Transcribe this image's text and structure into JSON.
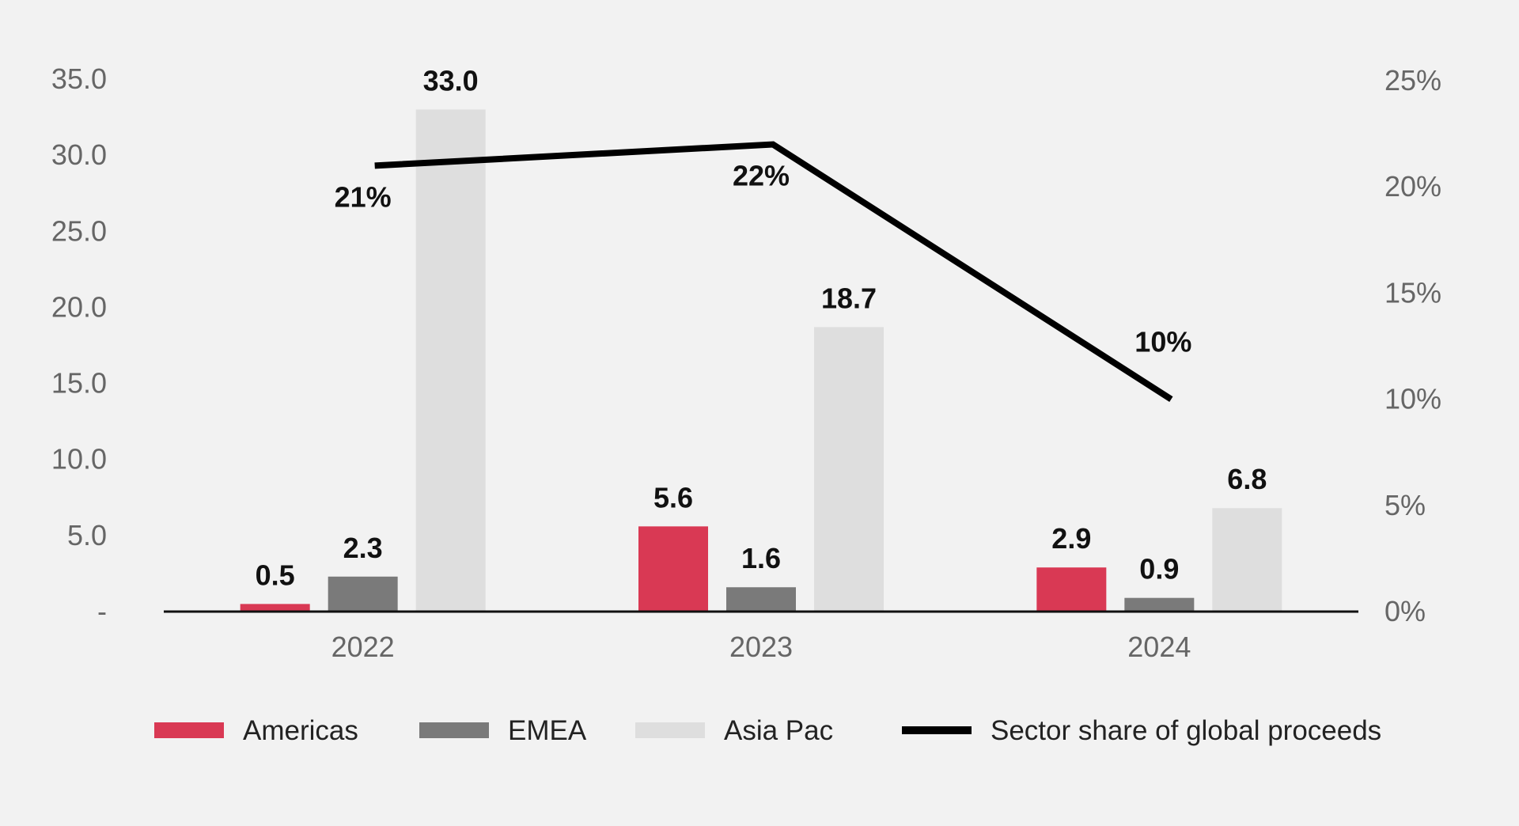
{
  "chart_data": {
    "type": "bar",
    "categories": [
      "2022",
      "2023",
      "2024"
    ],
    "series": [
      {
        "name": "Americas",
        "values": [
          0.5,
          5.6,
          2.9
        ],
        "labels": [
          "0.5",
          "5.6",
          "2.9"
        ],
        "color": "#d93954"
      },
      {
        "name": "EMEA",
        "values": [
          2.3,
          1.6,
          0.9
        ],
        "labels": [
          "2.3",
          "1.6",
          "0.9"
        ],
        "color": "#7a7a7a"
      },
      {
        "name": "Asia Pac",
        "values": [
          33.0,
          18.7,
          6.8
        ],
        "labels": [
          "33.0",
          "18.7",
          "6.8"
        ],
        "color": "#dedede"
      }
    ],
    "line_series": {
      "name": "Sector share of global proceeds",
      "values": [
        0.21,
        0.22,
        0.1
      ],
      "labels": [
        "21%",
        "22%",
        "10%"
      ],
      "color": "#000000",
      "axis": "right"
    },
    "y_left": {
      "ylim": [
        0,
        35
      ],
      "ticks": [
        0,
        5,
        10,
        15,
        20,
        25,
        30,
        35
      ],
      "tick_labels": [
        "-",
        "5.0",
        "10.0",
        "15.0",
        "20.0",
        "25.0",
        "30.0",
        "35.0"
      ]
    },
    "y_right": {
      "ylim": [
        0,
        0.25
      ],
      "ticks": [
        0,
        0.05,
        0.1,
        0.15,
        0.2,
        0.25
      ],
      "tick_labels": [
        "0%",
        "5%",
        "10%",
        "15%",
        "20%",
        "25%"
      ]
    },
    "legend_position": "bottom",
    "grid": false,
    "title": "",
    "xlabel": "",
    "ylabel": ""
  }
}
